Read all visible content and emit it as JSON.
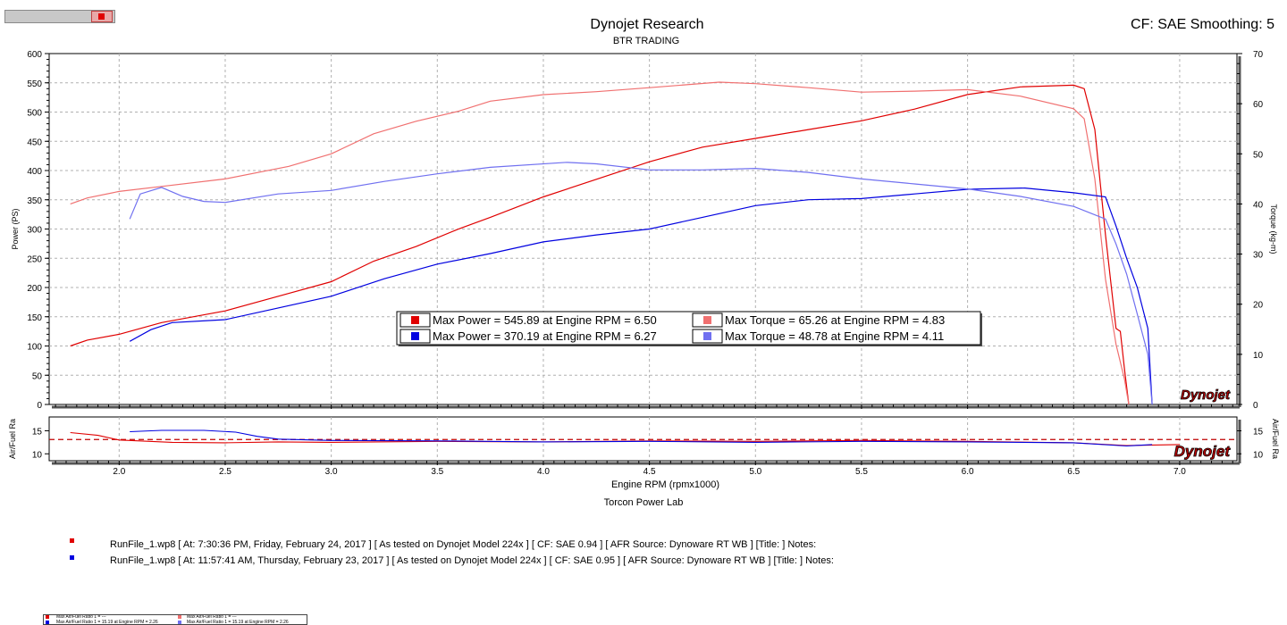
{
  "header": {
    "title": "Dynojet Research",
    "subtitle": "BTR TRADING",
    "cf_label": "CF: SAE Smoothing: 5"
  },
  "footer": {
    "lab": "Torcon Power Lab",
    "runs": [
      {
        "color": "#e00000",
        "text": "RunFile_1.wp8 [ At: 7:30:36 PM, Friday, February 24, 2017 ] [ As tested on Dynojet Model 224x ] [ CF: SAE 0.94 ] [ AFR Source: Dynoware RT WB ] [Title: ]  Notes:"
      },
      {
        "color": "#0000e0",
        "text": "RunFile_1.wp8 [ At: 11:57:41 AM, Thursday, February 23, 2017 ] [ As tested on Dynojet Model 224x ] [ CF: SAE 0.95 ] [ AFR Source: Dynoware RT WB ] [Title: ]  Notes:"
      }
    ],
    "mini_legend": [
      {
        "color": "#e00000",
        "text": "Max Air/Fuel Ratio 1 = ---"
      },
      {
        "color": "#f07070",
        "text": "Max Air/Fuel Ratio 1 = ---"
      },
      {
        "color": "#0000e0",
        "text": "Max Air/Fuel Ratio 1 = 15.19 at Engine RPM = 2.26"
      },
      {
        "color": "#7070f0",
        "text": "Max Air/Fuel Ratio 1 = 15.19 at Engine RPM = 2.26"
      }
    ]
  },
  "chart_data": [
    {
      "type": "line",
      "title": "Dynojet Research",
      "subtitle": "BTR TRADING",
      "xlabel": "Engine RPM (rpmx1000)",
      "ylabel": "Power (PS)",
      "y2label": "Torque (kg-m)",
      "xlim": [
        1.67,
        7.27
      ],
      "ylim": [
        0,
        600
      ],
      "y2lim": [
        0,
        70
      ],
      "x_ticks": [
        "2.0",
        "2.5",
        "3.0",
        "3.5",
        "4.0",
        "4.5",
        "5.0",
        "5.5",
        "6.0",
        "6.5",
        "7.0"
      ],
      "y_ticks": [
        "0",
        "50",
        "100",
        "150",
        "200",
        "250",
        "300",
        "350",
        "400",
        "450",
        "500",
        "550",
        "600"
      ],
      "y2_ticks": [
        "0",
        "10",
        "20",
        "30",
        "40",
        "50",
        "60",
        "70"
      ],
      "grid": true,
      "series": [
        {
          "color": "#e00000",
          "axis": "left",
          "x": [
            1.77,
            1.85,
            2.0,
            2.2,
            2.5,
            2.8,
            3.0,
            3.2,
            3.4,
            3.6,
            3.75,
            4.0,
            4.25,
            4.5,
            4.75,
            5.0,
            5.25,
            5.5,
            5.75,
            6.0,
            6.25,
            6.5,
            6.55,
            6.6,
            6.65,
            6.7,
            6.72,
            6.74,
            6.76
          ],
          "y": [
            100,
            110,
            120,
            140,
            160,
            190,
            210,
            245,
            270,
            300,
            320,
            355,
            385,
            415,
            440,
            455,
            470,
            485,
            505,
            530,
            543,
            546,
            540,
            470,
            290,
            130,
            125,
            60,
            0
          ]
        },
        {
          "color": "#f07070",
          "axis": "right",
          "x": [
            1.77,
            1.85,
            2.0,
            2.2,
            2.5,
            2.8,
            3.0,
            3.2,
            3.4,
            3.6,
            3.75,
            4.0,
            4.25,
            4.5,
            4.83,
            5.0,
            5.25,
            5.5,
            5.75,
            6.0,
            6.25,
            6.5,
            6.55,
            6.6,
            6.65,
            6.7,
            6.74,
            6.76
          ],
          "y": [
            40.0,
            41.2,
            42.5,
            43.5,
            45.0,
            47.5,
            50.0,
            54.0,
            56.5,
            58.5,
            60.5,
            61.8,
            62.4,
            63.2,
            64.3,
            64.0,
            63.2,
            62.3,
            62.5,
            62.8,
            61.5,
            59.0,
            57.0,
            45.0,
            25.0,
            12.0,
            5.0,
            0
          ]
        },
        {
          "color": "#0000e0",
          "axis": "left",
          "x": [
            2.05,
            2.15,
            2.25,
            2.5,
            2.75,
            3.0,
            3.25,
            3.5,
            3.75,
            4.0,
            4.25,
            4.5,
            4.75,
            5.0,
            5.25,
            5.5,
            5.75,
            6.0,
            6.27,
            6.5,
            6.65,
            6.7,
            6.75,
            6.8,
            6.85,
            6.87
          ],
          "y": [
            108,
            128,
            140,
            145,
            165,
            185,
            215,
            240,
            258,
            278,
            290,
            300,
            320,
            340,
            350,
            352,
            360,
            368,
            370,
            362,
            355,
            305,
            250,
            200,
            130,
            0
          ]
        },
        {
          "color": "#7070f0",
          "axis": "right",
          "x": [
            2.05,
            2.1,
            2.2,
            2.3,
            2.4,
            2.5,
            2.75,
            3.0,
            3.25,
            3.5,
            3.75,
            4.11,
            4.25,
            4.5,
            4.75,
            5.0,
            5.25,
            5.5,
            5.75,
            6.0,
            6.25,
            6.5,
            6.65,
            6.7,
            6.75,
            6.8,
            6.85,
            6.87
          ],
          "y": [
            37.0,
            42.0,
            43.3,
            41.5,
            40.5,
            40.3,
            42.0,
            42.7,
            44.5,
            46.0,
            47.3,
            48.3,
            48.0,
            46.8,
            46.8,
            47.1,
            46.3,
            45.0,
            44.0,
            43.0,
            41.5,
            39.5,
            37.0,
            32.0,
            26.0,
            18.0,
            10.0,
            0
          ]
        }
      ],
      "legend_box": [
        {
          "color": "#e00000",
          "text": "Max Power = 545.89 at Engine RPM = 6.50"
        },
        {
          "color": "#f07070",
          "text": "Max Torque = 65.26 at Engine RPM = 4.83"
        },
        {
          "color": "#0000e0",
          "text": "Max Power = 370.19 at Engine RPM = 6.27"
        },
        {
          "color": "#7070f0",
          "text": "Max Torque = 48.78 at Engine RPM = 4.11"
        }
      ],
      "legend_placement": "center",
      "watermark": "Dynojet"
    },
    {
      "type": "line",
      "ylabel": "Air/Fuel Ra",
      "y2label": "Air/Fuel Ra",
      "xlim": [
        1.67,
        7.27
      ],
      "ylim": [
        8.5,
        18
      ],
      "y_ticks": [
        "10",
        "15"
      ],
      "reference_line": {
        "y": 13.1,
        "color": "#c00000",
        "style": "dashed"
      },
      "series": [
        {
          "color": "#e00000",
          "x": [
            1.77,
            1.9,
            2.0,
            2.25,
            2.5,
            2.75,
            3.0,
            3.5,
            4.0,
            4.5,
            5.0,
            5.5,
            6.0,
            6.5,
            6.75,
            7.0
          ],
          "y": [
            14.6,
            14.0,
            13.0,
            12.5,
            12.4,
            12.6,
            12.5,
            12.7,
            12.6,
            12.8,
            12.7,
            12.9,
            12.7,
            12.4,
            11.8,
            12.0
          ]
        },
        {
          "color": "#0000e0",
          "x": [
            2.05,
            2.2,
            2.4,
            2.55,
            2.65,
            2.75,
            3.0,
            3.5,
            4.0,
            4.5,
            5.0,
            5.5,
            6.0,
            6.5,
            6.75,
            6.87
          ],
          "y": [
            14.8,
            15.1,
            15.1,
            14.7,
            13.8,
            13.2,
            12.9,
            12.8,
            12.6,
            12.7,
            12.5,
            12.7,
            12.6,
            12.4,
            11.7,
            12.0
          ]
        }
      ]
    }
  ]
}
